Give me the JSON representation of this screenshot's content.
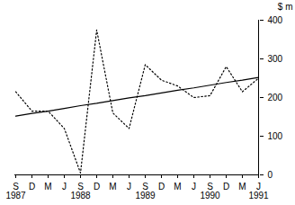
{
  "chart_data": {
    "type": "line",
    "categories": [
      "S\n1987",
      "D",
      "M",
      "J",
      "S\n1988",
      "D",
      "M",
      "J",
      "S\n1989",
      "D",
      "M",
      "J",
      "S\n1990",
      "D",
      "M",
      "J\n1991"
    ],
    "series": [
      {
        "color": "#000000",
        "line_style": "dotted",
        "values": [
          215,
          165,
          165,
          120,
          5,
          375,
          160,
          120,
          285,
          245,
          230,
          200,
          205,
          280,
          215,
          250
        ]
      },
      {
        "color": "#000000",
        "line_style": "solid",
        "values": [
          152,
          159,
          165,
          172,
          179,
          185,
          192,
          199,
          205,
          212,
          219,
          225,
          232,
          239,
          245,
          252
        ]
      }
    ],
    "y_label": "$ m",
    "ylim": [
      0,
      400
    ],
    "yticks": [
      0,
      100,
      200,
      300,
      400
    ],
    "grid": false
  }
}
